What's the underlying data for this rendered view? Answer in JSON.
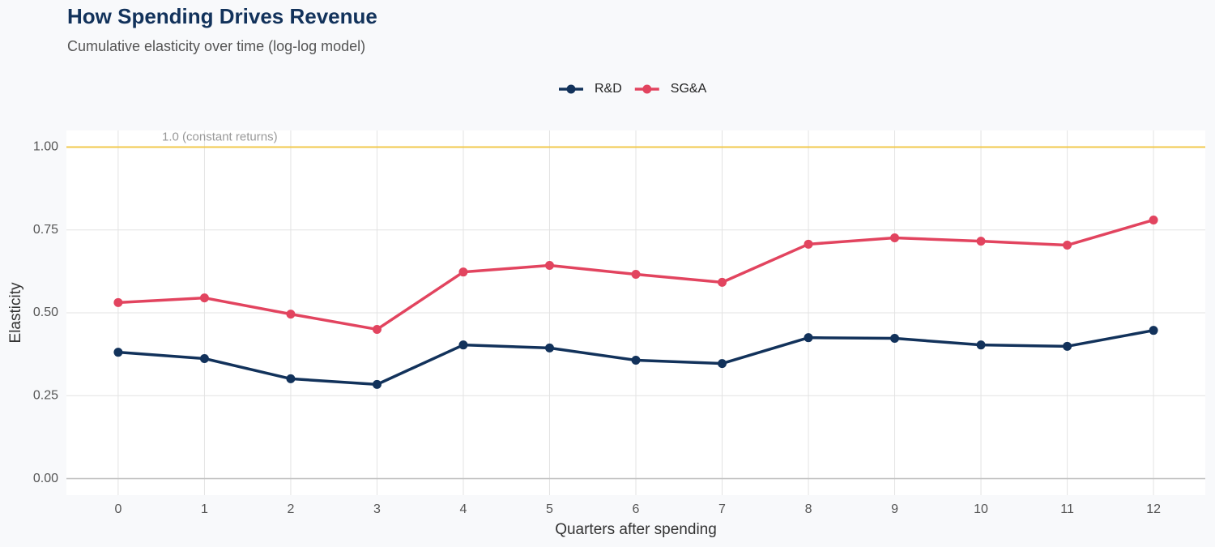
{
  "chart_data": {
    "type": "line",
    "title": "How Spending Drives Revenue",
    "subtitle": "Cumulative elasticity over time (log-log model)",
    "x_label": "Quarters after spending",
    "y_label": "Elasticity",
    "x": [
      0,
      1,
      2,
      3,
      4,
      5,
      6,
      7,
      8,
      9,
      10,
      11,
      12
    ],
    "series": [
      {
        "name": "R&D",
        "color": "#12325b",
        "values": [
          0.381,
          0.362,
          0.301,
          0.284,
          0.403,
          0.394,
          0.357,
          0.347,
          0.425,
          0.423,
          0.403,
          0.399,
          0.447
        ]
      },
      {
        "name": "SG&A",
        "color": "#e2445f",
        "values": [
          0.531,
          0.545,
          0.496,
          0.45,
          0.623,
          0.643,
          0.616,
          0.592,
          0.707,
          0.726,
          0.716,
          0.704,
          0.78
        ]
      }
    ],
    "reference_line": {
      "value": 1,
      "label": "1.0 (constant returns)",
      "color": "#f2c94c"
    },
    "xlim": [
      -0.6,
      12.6
    ],
    "ylim": [
      -0.05,
      1.05
    ],
    "xticks": [
      0,
      1,
      2,
      3,
      4,
      5,
      6,
      7,
      8,
      9,
      10,
      11,
      12
    ],
    "yticks": [
      {
        "value": 0,
        "label": "0.00"
      },
      {
        "value": 0.25,
        "label": "0.25"
      },
      {
        "value": 0.5,
        "label": "0.50"
      },
      {
        "value": 0.75,
        "label": "0.75"
      },
      {
        "value": 1,
        "label": "1.00"
      }
    ],
    "grid": true,
    "legend": "top"
  }
}
